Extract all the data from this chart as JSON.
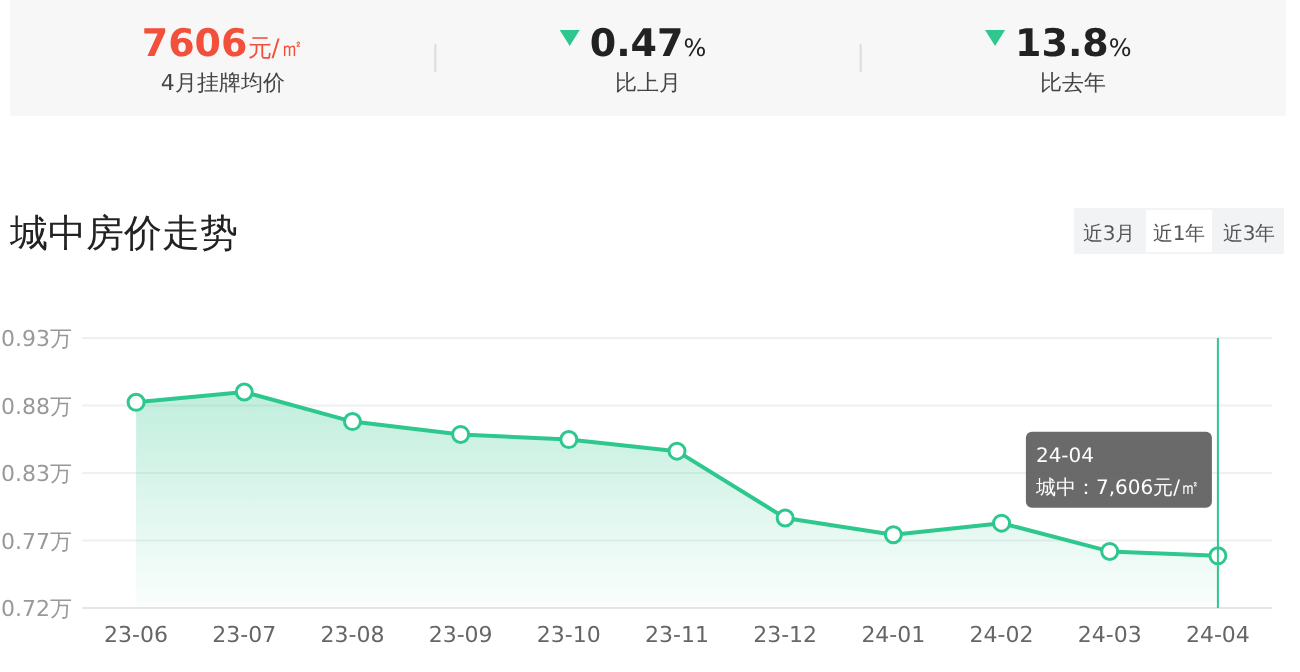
{
  "chart_data": [
    {
      "type": "other",
      "colors": [
        "#f2503a",
        "#222222",
        "#222222"
      ],
      "annotations": [
        "7606元/㎡",
        "4月挂牌均价",
        "0.47%",
        "比上月",
        "13.8%",
        "比去年"
      ]
    },
    {
      "type": "area",
      "title": "城中房价走势",
      "categories": [
        "23-06",
        "23-07",
        "23-08",
        "23-09",
        "23-10",
        "23-11",
        "23-12",
        "24-01",
        "24-02",
        "24-03",
        "24-04"
      ],
      "series": [
        {
          "color": "#2ec78e",
          "values": [
            0.88,
            0.888,
            0.865,
            0.855,
            0.851,
            0.842,
            0.79,
            0.777,
            0.786,
            0.764,
            0.7606
          ]
        }
      ],
      "ylim": [
        0.72,
        0.93
      ],
      "yticks": [
        {
          "value": 0.72,
          "label": "0.72万"
        },
        {
          "value": 0.7725,
          "label": "0.77万"
        },
        {
          "value": 0.825,
          "label": "0.83万"
        },
        {
          "value": 0.8775,
          "label": "0.88万"
        },
        {
          "value": 0.93,
          "label": "0.93万"
        }
      ],
      "grid": "y",
      "marker": "circle",
      "ref_lines": [
        {
          "axis": "x",
          "value": "24-04",
          "color": "#2ec78e"
        }
      ],
      "annotations": [
        {
          "text": "24-04\n城中：7,606元/㎡",
          "x": "24-04",
          "y": 0.7606
        },
        "近3月",
        "近1年",
        "近3年"
      ]
    }
  ]
}
